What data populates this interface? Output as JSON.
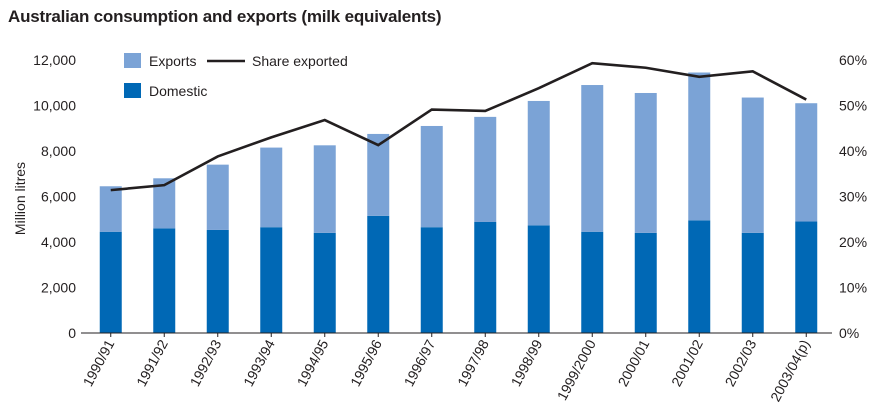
{
  "chart_data": {
    "type": "bar",
    "title": "Australian consumption and exports (milk equivalents)",
    "ylabel": "Million litres",
    "categories": [
      "1990/91",
      "1991/92",
      "1992/93",
      "1993/94",
      "1994/95",
      "1995/96",
      "1996/97",
      "1997/98",
      "1998/99",
      "1999/2000",
      "2000/01",
      "2001/02",
      "2002/03",
      "2003/04(p)"
    ],
    "y_ticks": [
      "0",
      "2,000",
      "4,000",
      "6,000",
      "8,000",
      "10,000",
      "12,000"
    ],
    "y2_ticks": [
      "0%",
      "10%",
      "20%",
      "30%",
      "40%",
      "50%",
      "60%"
    ],
    "ylim": [
      0,
      12000
    ],
    "y2lim": [
      0,
      60
    ],
    "stacked": true,
    "series": [
      {
        "name": "Domestic",
        "kind": "bar",
        "color": "#0068b5",
        "values": [
          4450,
          4600,
          4530,
          4650,
          4400,
          5150,
          4650,
          4880,
          4730,
          4450,
          4400,
          4950,
          4400,
          4900
        ]
      },
      {
        "name": "Exports",
        "kind": "bar",
        "color": "#7ba3d6",
        "values": [
          2000,
          2200,
          2870,
          3500,
          3850,
          3600,
          4450,
          4620,
          5470,
          6450,
          6150,
          6500,
          5950,
          5200
        ]
      },
      {
        "name": "Share exported",
        "kind": "line",
        "axis": "right",
        "color": "#231f20",
        "values": [
          31.4,
          32.5,
          38.8,
          43.0,
          46.8,
          41.3,
          49.1,
          48.8,
          53.8,
          59.3,
          58.3,
          56.3,
          57.5,
          51.3
        ]
      }
    ],
    "legend": {
      "items": [
        "Exports",
        "Share exported",
        "Domestic"
      ],
      "placement": "top-left"
    },
    "grid": false
  }
}
